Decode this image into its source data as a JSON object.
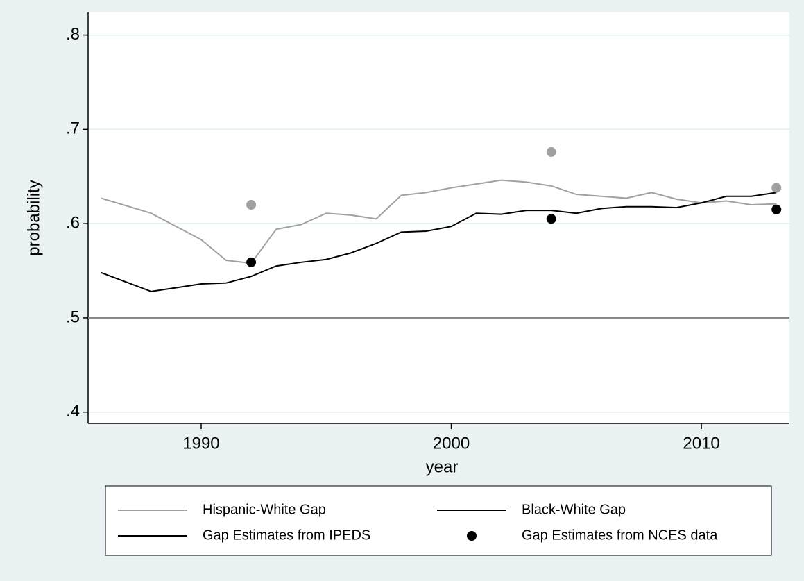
{
  "chart_data": {
    "type": "line",
    "xlabel": "year",
    "ylabel": "probability",
    "xlim": [
      1985.48,
      2013.52
    ],
    "xticks": [
      1990,
      2000,
      2010
    ],
    "ylim": [
      0.388,
      0.824
    ],
    "yticks": [
      {
        "value": 0.4,
        "label": ".4"
      },
      {
        "value": 0.5,
        "label": ".5"
      },
      {
        "value": 0.6,
        "label": ".6"
      },
      {
        "value": 0.7,
        "label": ".7"
      },
      {
        "value": 0.8,
        "label": ".8"
      }
    ],
    "grid": true,
    "yline": 0.5,
    "series": [
      {
        "style": "line",
        "color": "#a0a0a0",
        "x": [
          1986,
          1987,
          1988,
          1989,
          1990,
          1991,
          1992,
          1993,
          1994,
          1995,
          1996,
          1997,
          1998,
          1999,
          2000,
          2001,
          2002,
          2003,
          2004,
          2005,
          2006,
          2007,
          2008,
          2009,
          2010,
          2011,
          2012,
          2013
        ],
        "values": [
          0.627,
          0.619,
          0.611,
          0.597,
          0.583,
          0.561,
          0.558,
          0.594,
          0.599,
          0.611,
          0.609,
          0.605,
          0.63,
          0.633,
          0.638,
          0.642,
          0.646,
          0.644,
          0.64,
          0.631,
          0.629,
          0.627,
          0.633,
          0.626,
          0.622,
          0.624,
          0.62,
          0.621
        ]
      },
      {
        "style": "line",
        "color": "#000000",
        "x": [
          1986,
          1987,
          1988,
          1989,
          1990,
          1991,
          1992,
          1993,
          1994,
          1995,
          1996,
          1997,
          1998,
          1999,
          2000,
          2001,
          2002,
          2003,
          2004,
          2005,
          2006,
          2007,
          2008,
          2009,
          2010,
          2011,
          2012,
          2013
        ],
        "values": [
          0.548,
          0.538,
          0.528,
          0.532,
          0.536,
          0.537,
          0.544,
          0.555,
          0.559,
          0.562,
          0.569,
          0.579,
          0.591,
          0.592,
          0.597,
          0.611,
          0.61,
          0.614,
          0.614,
          0.611,
          0.616,
          0.618,
          0.618,
          0.617,
          0.622,
          0.629,
          0.629,
          0.633
        ]
      },
      {
        "style": "points",
        "color": "#a0a0a0",
        "x": [
          1992,
          2004,
          2013
        ],
        "values": [
          0.62,
          0.676,
          0.638
        ]
      },
      {
        "style": "points",
        "color": "#000000",
        "x": [
          1992,
          2004,
          2013
        ],
        "values": [
          0.559,
          0.605,
          0.615
        ]
      }
    ],
    "legend": [
      {
        "label": "Hispanic-White Gap",
        "symbol": "line",
        "color": "#a0a0a0"
      },
      {
        "label": "Black-White Gap",
        "symbol": "line",
        "color": "#000000"
      },
      {
        "label": "Gap Estimates from IPEDS",
        "symbol": "line",
        "color": "#000000"
      },
      {
        "label": "Gap Estimates from NCES data",
        "symbol": "dot",
        "color": "#000000"
      }
    ]
  }
}
